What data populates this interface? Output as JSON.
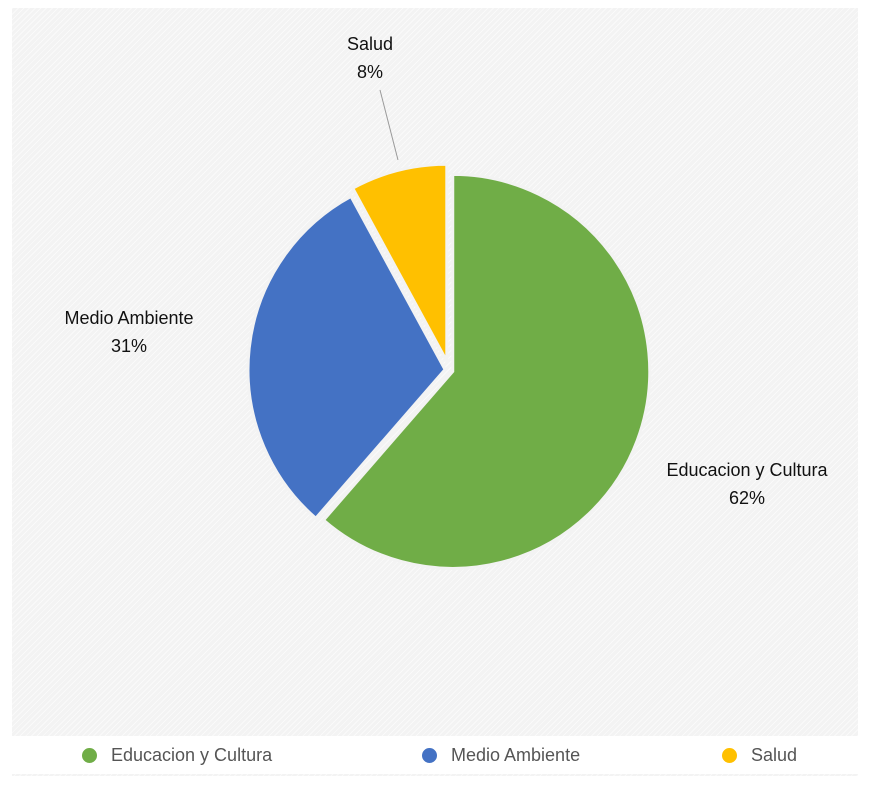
{
  "chart_data": {
    "type": "pie",
    "title": "",
    "legend_position": "bottom",
    "slices": [
      {
        "label": "Educacion y Cultura",
        "value": 62,
        "percent_label": "62%",
        "color": "#70ad47"
      },
      {
        "label": "Medio Ambiente",
        "value": 31,
        "percent_label": "31%",
        "color": "#4472c4"
      },
      {
        "label": "Salud",
        "value": 8,
        "percent_label": "8%",
        "color": "#ffc000"
      }
    ]
  }
}
